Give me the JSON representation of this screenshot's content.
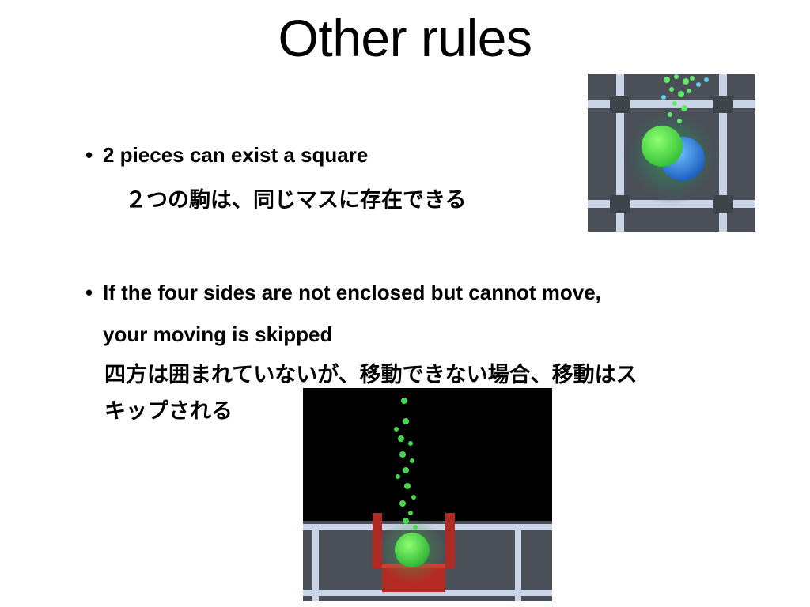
{
  "slide": {
    "title": "Other rules",
    "bullets": [
      {
        "marker": "•",
        "text_en": "2 pieces can exist a square",
        "text_jp": "２つの駒は、同じマスに存在できる"
      },
      {
        "marker": "•",
        "text_en_line1": "If the four sides are not enclosed but cannot move,",
        "text_en_line2": "your moving is skipped",
        "text_jp_line1": "四方は囲まれていないが、移動できない場合、移動はス",
        "text_jp_line2": "キップされる"
      }
    ]
  },
  "images": [
    {
      "icon": "game-screenshot-two-pieces-on-square"
    },
    {
      "icon": "game-screenshot-blocked-piece"
    }
  ]
}
